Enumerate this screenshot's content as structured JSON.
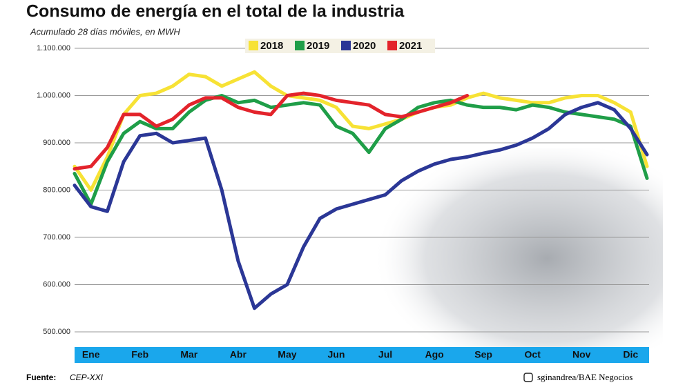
{
  "chart_data": {
    "type": "line",
    "title": "Consumo de energía en el total de la industria",
    "subtitle": "Acumulado 28 días móviles, en MWH",
    "source_label": "Fuente:",
    "source": "CEP-XXI",
    "credit": "sginandrea/BAE Negocios",
    "categories": [
      null,
      "Ene",
      null,
      null,
      "Feb",
      null,
      null,
      "Mar",
      null,
      null,
      "Abr",
      null,
      null,
      "May",
      null,
      null,
      "Jun",
      null,
      null,
      "Jul",
      null,
      null,
      "Ago",
      null,
      null,
      "Sep",
      null,
      null,
      "Oct",
      null,
      null,
      "Nov",
      null,
      null,
      "Dic",
      null
    ],
    "series": [
      {
        "name": "2018",
        "color": "#f7e235",
        "values": [
          850000,
          800000,
          870000,
          960000,
          1000000,
          1005000,
          1020000,
          1045000,
          1040000,
          1020000,
          1035000,
          1050000,
          1020000,
          1000000,
          995000,
          990000,
          975000,
          935000,
          930000,
          940000,
          950000,
          965000,
          975000,
          980000,
          995000,
          1005000,
          995000,
          990000,
          985000,
          985000,
          995000,
          1000000,
          1000000,
          985000,
          965000,
          850000
        ]
      },
      {
        "name": "2019",
        "color": "#1f9e48",
        "values": [
          835000,
          770000,
          860000,
          920000,
          945000,
          930000,
          930000,
          965000,
          990000,
          1000000,
          985000,
          990000,
          975000,
          980000,
          985000,
          980000,
          935000,
          920000,
          880000,
          930000,
          950000,
          975000,
          985000,
          990000,
          980000,
          975000,
          975000,
          970000,
          980000,
          975000,
          965000,
          960000,
          955000,
          950000,
          935000,
          825000
        ]
      },
      {
        "name": "2020",
        "color": "#2b3796",
        "values": [
          810000,
          765000,
          755000,
          860000,
          915000,
          920000,
          900000,
          905000,
          910000,
          800000,
          650000,
          550000,
          580000,
          600000,
          680000,
          740000,
          760000,
          770000,
          780000,
          790000,
          820000,
          840000,
          855000,
          865000,
          870000,
          878000,
          885000,
          895000,
          910000,
          930000,
          960000,
          975000,
          985000,
          970000,
          930000,
          875000
        ]
      },
      {
        "name": "2021",
        "color": "#e3232b",
        "values": [
          845000,
          850000,
          890000,
          960000,
          960000,
          935000,
          950000,
          980000,
          995000,
          995000,
          975000,
          965000,
          960000,
          1000000,
          1005000,
          1000000,
          990000,
          985000,
          980000,
          960000,
          955000,
          965000,
          975000,
          985000,
          1000000,
          null,
          null,
          null,
          null,
          null,
          null,
          null,
          null,
          null,
          null,
          null
        ]
      }
    ],
    "ylim": [
      500000,
      1100000
    ],
    "yticks": [
      {
        "value": 500000,
        "label": "500.000"
      },
      {
        "value": 600000,
        "label": "600.000"
      },
      {
        "value": 700000,
        "label": "700.000"
      },
      {
        "value": 800000,
        "label": "800.000"
      },
      {
        "value": 900000,
        "label": "900.000"
      },
      {
        "value": 1000000,
        "label": "1.000.000"
      },
      {
        "value": 1100000,
        "label": "1.100.000"
      }
    ],
    "grid": true
  }
}
